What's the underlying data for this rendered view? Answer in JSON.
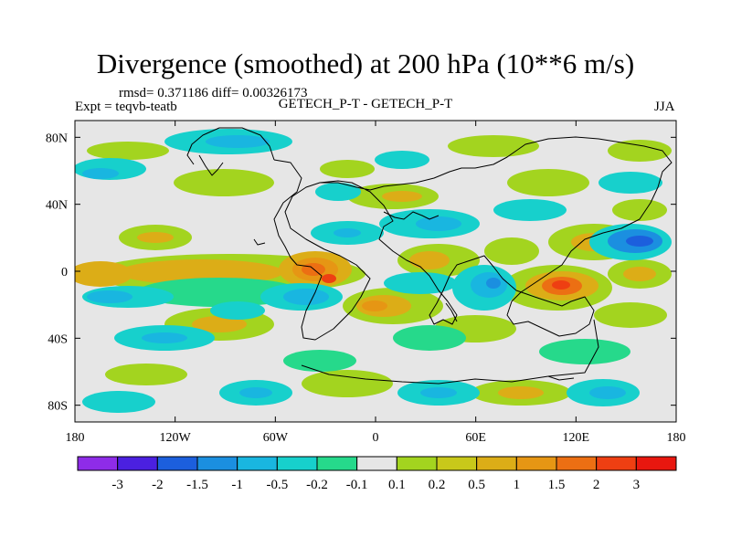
{
  "title": "Divergence (smoothed) at 200 hPa (10**6 m/s)",
  "stats": "rmsd= 0.371186 diff= 0.00326173",
  "experiment": "Expt = teqvb-teatb",
  "comparison": "GETECH_P-T - GETECH_P-T",
  "season": "JJA",
  "map": {
    "projection": "cylindrical equidistant",
    "lon_range": [
      -180,
      180
    ],
    "lat_range": [
      -90,
      90
    ],
    "x_ticks": [
      {
        "value": -180,
        "label": "180"
      },
      {
        "value": -120,
        "label": "120W"
      },
      {
        "value": -60,
        "label": "60W"
      },
      {
        "value": 0,
        "label": "0"
      },
      {
        "value": 60,
        "label": "60E"
      },
      {
        "value": 120,
        "label": "120E"
      },
      {
        "value": 180,
        "label": "180"
      }
    ],
    "y_ticks": [
      {
        "value": 80,
        "label": "80N"
      },
      {
        "value": 40,
        "label": "40N"
      },
      {
        "value": 0,
        "label": "0"
      },
      {
        "value": -40,
        "label": "40S"
      },
      {
        "value": -80,
        "label": "80S"
      }
    ],
    "background_color": "#e6e6e6"
  },
  "colorbar": {
    "colors": [
      "#8e2ce8",
      "#4b20e0",
      "#1c5fdd",
      "#1b8fe0",
      "#19b6e0",
      "#17d0cc",
      "#26d98b",
      "#e6e6e6",
      "#a3d41f",
      "#c8c81a",
      "#dcad17",
      "#e69614",
      "#ec6f13",
      "#ee3f12",
      "#e8170f"
    ],
    "labels": [
      "-3",
      "-2",
      "-1.5",
      "-1",
      "-0.5",
      "-0.2",
      "-0.1",
      "0.1",
      "0.2",
      "0.5",
      "1",
      "1.5",
      "2",
      "3"
    ]
  },
  "chart_data": {
    "type": "filled-contour map",
    "title": "Divergence (smoothed) at 200 hPa (10**6 m/s)",
    "variable": "Divergence (smoothed)",
    "level": "200 hPa",
    "units": "10**6 m/s",
    "contour_levels": [
      -3,
      -2,
      -1.5,
      -1,
      -0.5,
      -0.2,
      -0.1,
      0.1,
      0.2,
      0.5,
      1,
      1.5,
      2,
      3
    ],
    "features": [
      {
        "lon": -45,
        "lat": 0,
        "value": 1.5
      },
      {
        "lon": -80,
        "lat": -15,
        "value": -0.5
      },
      {
        "lon": -140,
        "lat": 0,
        "value": 0.5
      },
      {
        "lon": 115,
        "lat": -10,
        "value": 1.5
      },
      {
        "lon": 150,
        "lat": 15,
        "value": -1.5
      },
      {
        "lon": 25,
        "lat": -15,
        "value": 1
      },
      {
        "lon": 45,
        "lat": -5,
        "value": -0.5
      },
      {
        "lon": -110,
        "lat": -30,
        "value": -0.5
      },
      {
        "lon": 90,
        "lat": 10,
        "value": 0.5
      },
      {
        "lon": 130,
        "lat": 45,
        "value": 0.5
      }
    ]
  }
}
